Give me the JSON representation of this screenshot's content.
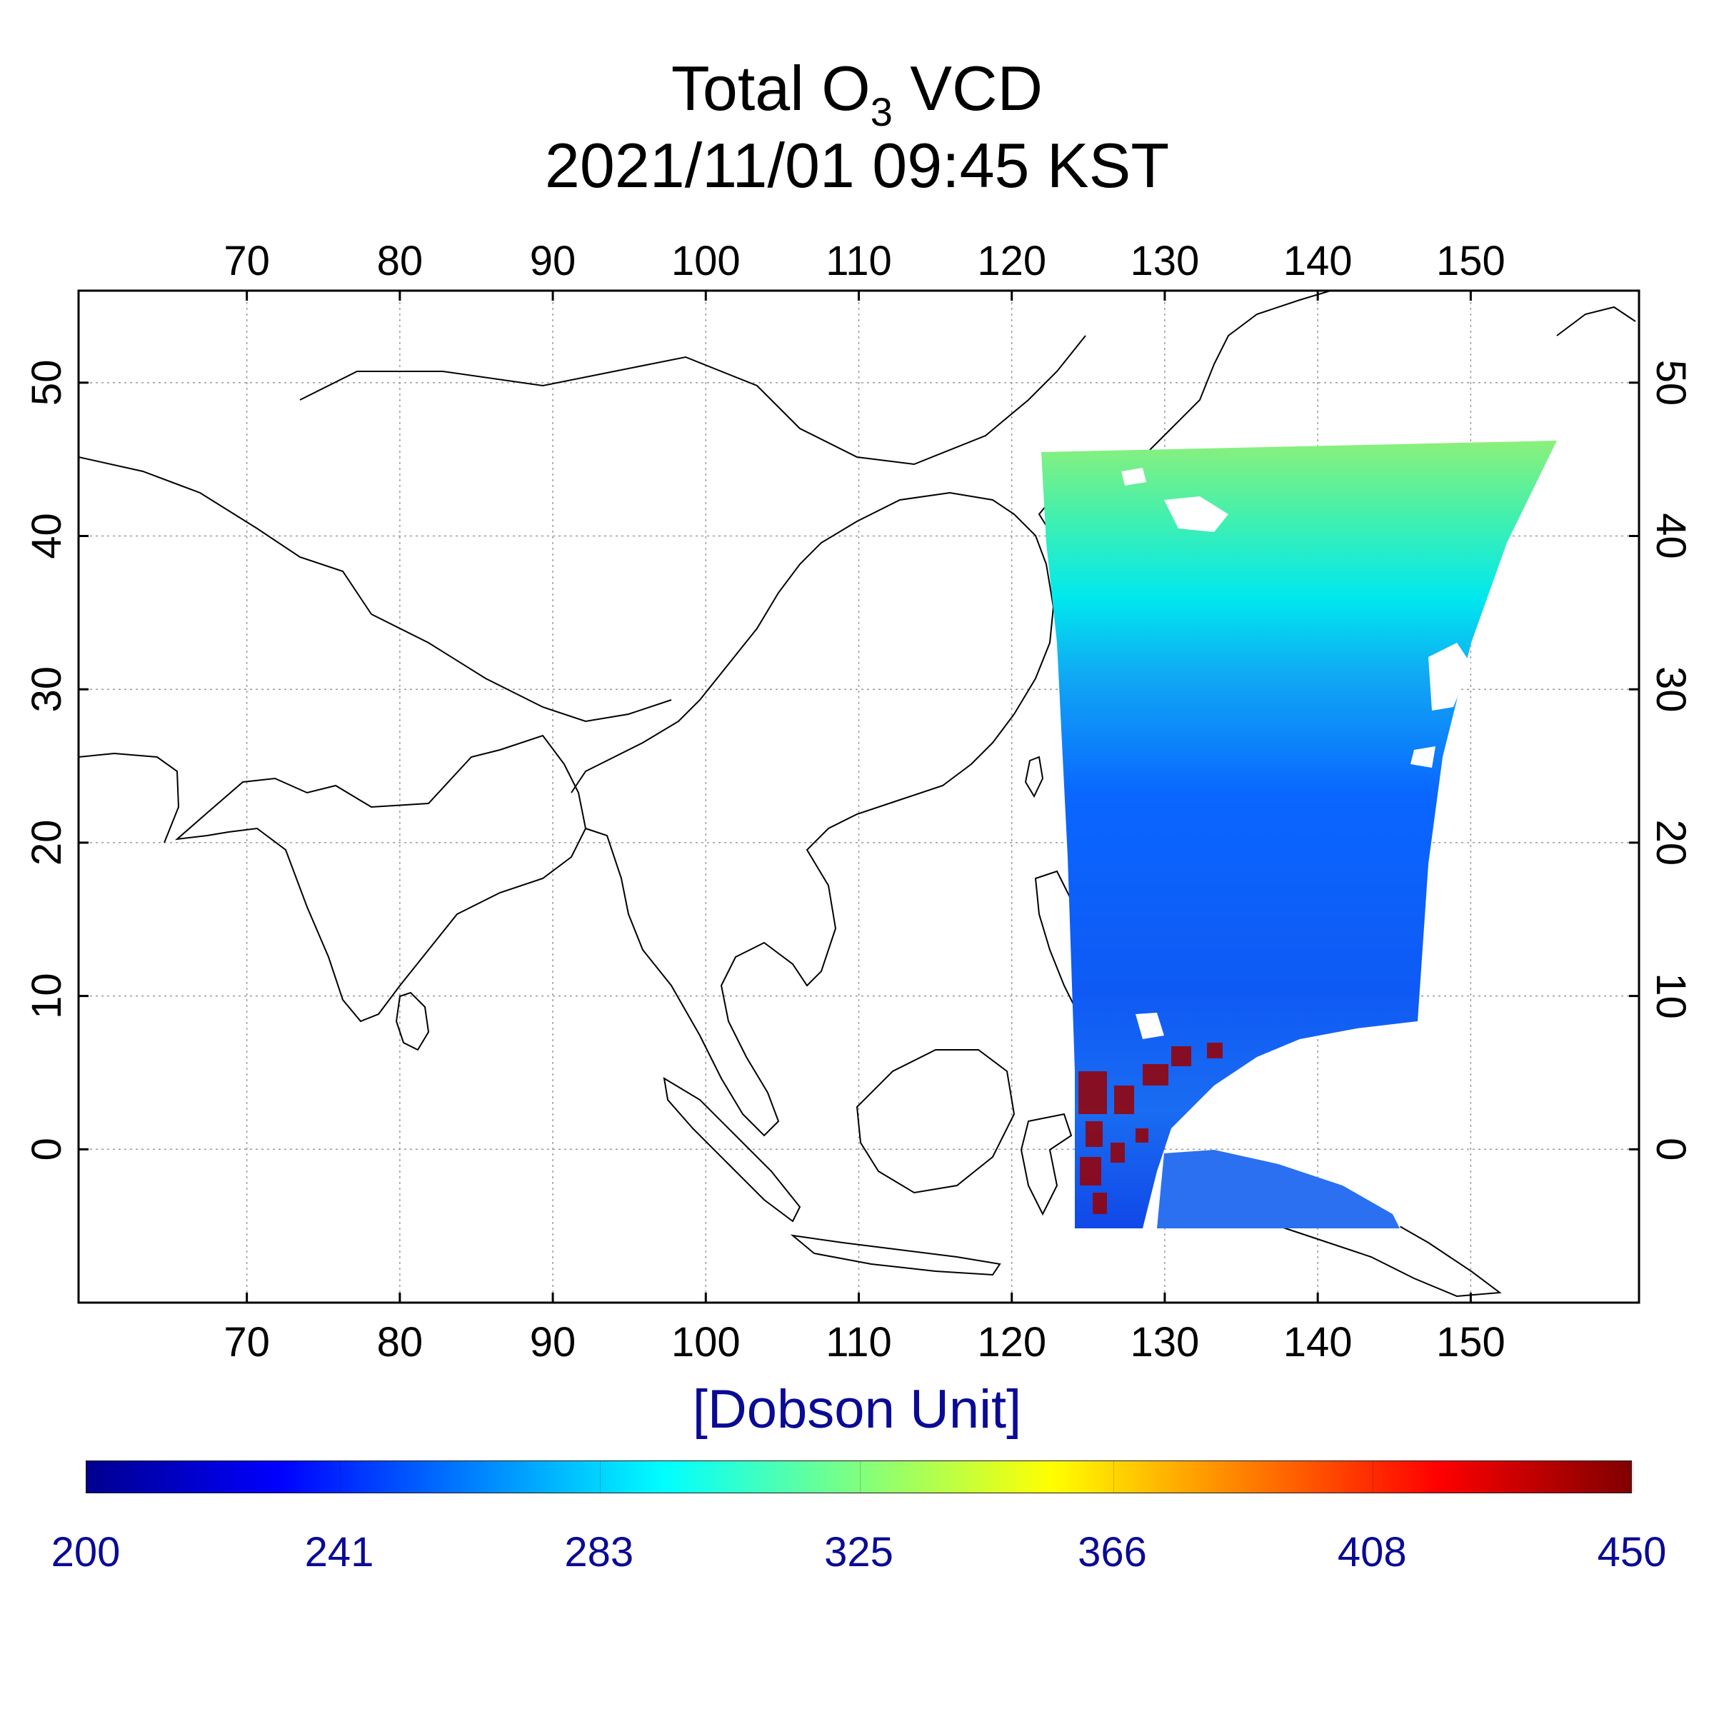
{
  "title": {
    "prefix": "Total O",
    "subscript": "3",
    "suffix": " VCD",
    "timestamp": "2021/11/01 09:45 KST"
  },
  "map": {
    "lon_ticks": [
      "70",
      "80",
      "90",
      "100",
      "110",
      "120",
      "130",
      "140",
      "150"
    ],
    "lat_ticks": [
      "0",
      "10",
      "20",
      "30",
      "40",
      "50"
    ],
    "lon_range": [
      59,
      161
    ],
    "lat_range": [
      -10,
      56
    ],
    "grid": true,
    "swath": {
      "lon_min": 122,
      "lon_max": 155,
      "lat_min": -6,
      "lat_max": 46
    }
  },
  "colorbar": {
    "unit_label": "[Dobson Unit]",
    "ticks": [
      "200",
      "241",
      "283",
      "325",
      "366",
      "408",
      "450"
    ],
    "range": [
      200,
      450
    ],
    "colormap": "jet",
    "colors": [
      "#00008f",
      "#0000ff",
      "#0080ff",
      "#00ffff",
      "#80ff80",
      "#ffff00",
      "#ff8000",
      "#ff0000",
      "#800000"
    ]
  }
}
